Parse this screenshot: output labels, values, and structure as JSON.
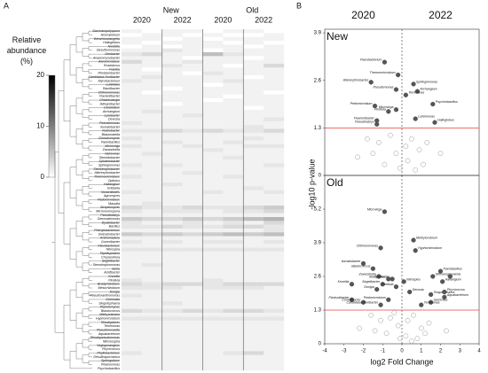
{
  "panels": [
    "A",
    "B"
  ],
  "chart_data": [
    {
      "type": "heatmap",
      "groups": [
        "New",
        "Old"
      ],
      "columns": [
        "2020",
        "2022",
        "2020",
        "2022"
      ],
      "colorbar_label": "Relative abundance (%)",
      "clim": [
        0,
        20
      ],
      "cticks": [
        0,
        10,
        20
      ],
      "rows": [
        "Saccharopolyspora",
        "Aromatoleum",
        "Wenzhouxiangella",
        "Halioglobus",
        "Nordella",
        "Desulfuromonas",
        "Geobacter",
        "Anaeromyxobacter",
        "Aeromicrobium",
        "Roseiarcus",
        "Frankia",
        "Rhodanobacter",
        "Candidatus Koribacter",
        "Mycobacterium",
        "Luteitalea",
        "Ramlibacter",
        "Chthonomonas",
        "Flavisolibacter",
        "Ohtaekwangia",
        "Adhaeribacter",
        "Clostridium",
        "Archangium",
        "Lysobacter",
        "Devosia",
        "Pseudomonas",
        "Ilumatobacter",
        "Rubrobacter",
        "Blastocatella",
        "Chondromyces",
        "Paenibacillus",
        "Microvirga",
        "Zavarzinella",
        "Variovorax",
        "Steroidobacter",
        "Sphaerobacter",
        "Sphingomonas",
        "Stenotrophobacter",
        "Altererythrobacter",
        "Thermomicrobium",
        "Opitutus",
        "Haliangium",
        "Kribbella",
        "Nocardioides",
        "Agromyces",
        "Pedomicrobium",
        "Massilia",
        "Streptomyces",
        "Micromonospora",
        "Pseudolabrys",
        "Gemmatimonas",
        "Dyadobacter",
        "Bacillus",
        "Phenylobacterium",
        "Solirubrobacter",
        "Actinomadura",
        "Conexibacter",
        "Flavobacterium",
        "Nitrospira",
        "Tepidisphaera",
        "Chryseolinea",
        "Segetibacter",
        "Stenotrophomonas",
        "Iamia",
        "Acidibacter",
        "Knoellia",
        "Pirellula",
        "Bradyrhizobium",
        "Mesorhizobium",
        "Dongia",
        "Pseudoxanthomonas",
        "Gemmata",
        "Singulisphaera",
        "Planctomyces",
        "Blastococcus",
        "Methylotenera",
        "Hyphomicrobium",
        "Rhodoplanes",
        "Terrimonas",
        "Pseudonocardia",
        "Aquabacterium",
        "Rhodopseudomonas",
        "Nitrosospira",
        "Virgisporangium",
        "Phycicoccus",
        "Phyllobacterium",
        "Desulfosporosinus",
        "Sphingobium",
        "Polaromonas",
        "Psychrobacillus"
      ],
      "values": [
        [
          1,
          0,
          1,
          1,
          0,
          1,
          1,
          0
        ],
        [
          0,
          1,
          1,
          0,
          1,
          0,
          0,
          1
        ],
        [
          1,
          1,
          0,
          1,
          0,
          1,
          1,
          1
        ],
        [
          1,
          0,
          1,
          1,
          1,
          0,
          1,
          0
        ],
        [
          0,
          1,
          0,
          1,
          1,
          1,
          0,
          1
        ],
        [
          1,
          1,
          2,
          1,
          0,
          1,
          1,
          1
        ],
        [
          2,
          3,
          1,
          1,
          5,
          2,
          1,
          1
        ],
        [
          1,
          1,
          1,
          0,
          1,
          1,
          0,
          1
        ],
        [
          3,
          1,
          1,
          2,
          1,
          1,
          1,
          1
        ],
        [
          1,
          1,
          2,
          1,
          1,
          0,
          1,
          3
        ],
        [
          1,
          0,
          1,
          1,
          1,
          1,
          1,
          1
        ],
        [
          1,
          1,
          1,
          0,
          2,
          1,
          1,
          1
        ],
        [
          1,
          2,
          1,
          1,
          1,
          1,
          0,
          1
        ],
        [
          2,
          1,
          1,
          1,
          1,
          2,
          1,
          1
        ],
        [
          1,
          1,
          1,
          1,
          0,
          1,
          1,
          1
        ],
        [
          1,
          1,
          0,
          1,
          1,
          1,
          1,
          1
        ],
        [
          1,
          0,
          1,
          1,
          1,
          1,
          1,
          0
        ],
        [
          1,
          1,
          1,
          1,
          1,
          0,
          1,
          1
        ],
        [
          1,
          1,
          1,
          1,
          0,
          1,
          1,
          1
        ],
        [
          1,
          1,
          0,
          1,
          1,
          1,
          1,
          1
        ],
        [
          1,
          1,
          1,
          1,
          1,
          1,
          0,
          1
        ],
        [
          1,
          2,
          1,
          1,
          1,
          1,
          1,
          1
        ],
        [
          1,
          1,
          1,
          2,
          1,
          1,
          1,
          1
        ],
        [
          1,
          1,
          1,
          1,
          1,
          1,
          1,
          2
        ],
        [
          2,
          1,
          1,
          1,
          1,
          1,
          1,
          1
        ],
        [
          1,
          1,
          1,
          1,
          1,
          1,
          2,
          1
        ],
        [
          2,
          2,
          3,
          2,
          3,
          2,
          2,
          3
        ],
        [
          1,
          1,
          1,
          1,
          1,
          1,
          1,
          1
        ],
        [
          2,
          1,
          1,
          1,
          1,
          1,
          2,
          1
        ],
        [
          1,
          1,
          2,
          1,
          1,
          2,
          1,
          1
        ],
        [
          2,
          1,
          1,
          2,
          1,
          1,
          2,
          2
        ],
        [
          1,
          1,
          1,
          1,
          2,
          1,
          1,
          1
        ],
        [
          1,
          2,
          1,
          1,
          1,
          1,
          1,
          1
        ],
        [
          1,
          1,
          1,
          1,
          1,
          2,
          1,
          1
        ],
        [
          1,
          1,
          1,
          1,
          1,
          1,
          1,
          1
        ],
        [
          2,
          1,
          2,
          1,
          1,
          1,
          1,
          2
        ],
        [
          1,
          1,
          1,
          1,
          1,
          1,
          1,
          1
        ],
        [
          1,
          1,
          1,
          2,
          1,
          1,
          1,
          1
        ],
        [
          2,
          1,
          1,
          1,
          1,
          2,
          1,
          1
        ],
        [
          1,
          1,
          1,
          1,
          1,
          1,
          1,
          1
        ],
        [
          1,
          1,
          2,
          1,
          1,
          1,
          1,
          1
        ],
        [
          1,
          1,
          1,
          1,
          1,
          1,
          2,
          1
        ],
        [
          2,
          1,
          1,
          1,
          2,
          1,
          1,
          2
        ],
        [
          1,
          1,
          1,
          1,
          1,
          1,
          1,
          1
        ],
        [
          1,
          1,
          1,
          1,
          1,
          1,
          1,
          1
        ],
        [
          1,
          2,
          1,
          1,
          1,
          1,
          1,
          1
        ],
        [
          3,
          2,
          2,
          3,
          2,
          2,
          3,
          4
        ],
        [
          2,
          1,
          2,
          2,
          1,
          2,
          2,
          3
        ],
        [
          1,
          1,
          1,
          1,
          1,
          1,
          1,
          1
        ],
        [
          4,
          3,
          3,
          4,
          3,
          4,
          5,
          6
        ],
        [
          2,
          1,
          1,
          2,
          1,
          2,
          1,
          3
        ],
        [
          2,
          2,
          3,
          2,
          2,
          3,
          3,
          2
        ],
        [
          1,
          1,
          1,
          1,
          1,
          1,
          1,
          2
        ],
        [
          4,
          3,
          4,
          3,
          4,
          5,
          4,
          5
        ],
        [
          1,
          1,
          1,
          1,
          1,
          1,
          1,
          1
        ],
        [
          2,
          1,
          2,
          1,
          2,
          2,
          1,
          2
        ],
        [
          1,
          1,
          1,
          1,
          1,
          1,
          1,
          1
        ],
        [
          2,
          2,
          2,
          2,
          2,
          2,
          2,
          2
        ],
        [
          1,
          1,
          1,
          1,
          1,
          1,
          1,
          1
        ],
        [
          1,
          1,
          1,
          1,
          1,
          1,
          1,
          1
        ],
        [
          1,
          1,
          1,
          1,
          1,
          1,
          1,
          1
        ],
        [
          1,
          2,
          1,
          1,
          1,
          1,
          1,
          1
        ],
        [
          1,
          1,
          1,
          1,
          1,
          1,
          1,
          1
        ],
        [
          1,
          1,
          1,
          1,
          1,
          1,
          1,
          1
        ],
        [
          1,
          1,
          1,
          1,
          1,
          1,
          1,
          1
        ],
        [
          2,
          1,
          1,
          1,
          2,
          1,
          1,
          1
        ],
        [
          3,
          2,
          3,
          3,
          2,
          3,
          3,
          3
        ],
        [
          2,
          2,
          2,
          1,
          2,
          2,
          2,
          1
        ],
        [
          1,
          1,
          1,
          1,
          1,
          1,
          1,
          1
        ],
        [
          2,
          1,
          1,
          1,
          1,
          1,
          1,
          1
        ],
        [
          1,
          1,
          1,
          1,
          1,
          1,
          1,
          1
        ],
        [
          1,
          1,
          2,
          1,
          1,
          1,
          1,
          1
        ],
        [
          1,
          1,
          1,
          1,
          1,
          1,
          1,
          1
        ],
        [
          3,
          2,
          2,
          3,
          2,
          3,
          3,
          2
        ],
        [
          1,
          1,
          1,
          1,
          1,
          1,
          1,
          1
        ],
        [
          2,
          2,
          2,
          2,
          2,
          2,
          2,
          2
        ],
        [
          1,
          1,
          1,
          1,
          1,
          1,
          1,
          1
        ],
        [
          1,
          1,
          1,
          1,
          1,
          1,
          1,
          1
        ],
        [
          1,
          1,
          1,
          1,
          1,
          1,
          1,
          1
        ],
        [
          1,
          1,
          1,
          1,
          1,
          1,
          1,
          1
        ],
        [
          1,
          1,
          1,
          1,
          1,
          1,
          1,
          1
        ],
        [
          1,
          1,
          1,
          1,
          1,
          1,
          1,
          1
        ],
        [
          1,
          1,
          1,
          1,
          1,
          1,
          1,
          1
        ],
        [
          1,
          1,
          1,
          1,
          1,
          1,
          1,
          1
        ],
        [
          2,
          1,
          1,
          1,
          1,
          2,
          3,
          1
        ],
        [
          1,
          1,
          1,
          1,
          1,
          1,
          1,
          1
        ],
        [
          1,
          1,
          1,
          1,
          1,
          1,
          1,
          1
        ],
        [
          1,
          1,
          1,
          1,
          1,
          1,
          1,
          1
        ],
        [
          1,
          1,
          1,
          1,
          1,
          1,
          1,
          1
        ]
      ]
    },
    {
      "type": "scatter",
      "title": "New",
      "column_headers": [
        "2020",
        "2022"
      ],
      "ylabel": "-log10 p-value",
      "xlim": [
        -4,
        4
      ],
      "ylim": [
        0,
        4
      ],
      "yticks": [
        0,
        1.3,
        2.6,
        3.9
      ],
      "threshold": 1.3,
      "threshold_color": "#e8413c",
      "series": [
        {
          "color": "#555555",
          "labels": [
            "Flavobacterium",
            "Thermomicrobium",
            "Altererythrobacter",
            "Sphingomonas",
            "Pseudomonas",
            "Archangium",
            "Terrimonas",
            "Psychrobacillus",
            "Pedomicrobium",
            "Pirellula",
            "Microvirga",
            "Luteimonas",
            "Flavisolibacter",
            "Pseudolabrys",
            "Halioglobus"
          ],
          "x": [
            -0.9,
            -0.2,
            -1.6,
            0.6,
            -0.3,
            0.8,
            0.2,
            1.6,
            -1.4,
            -0.7,
            -0.3,
            0.7,
            -1.3,
            -1.3,
            1.7
          ],
          "values": [
            3.1,
            2.75,
            2.55,
            2.5,
            2.35,
            2.3,
            2.2,
            1.95,
            1.9,
            1.75,
            1.8,
            1.55,
            1.5,
            1.4,
            1.45
          ]
        },
        {
          "color": "none",
          "x": [
            -1.8,
            -1.2,
            -0.6,
            -0.3,
            0.2,
            0.5,
            0.9,
            1.3,
            -2.3,
            2.0,
            -0.9,
            0.3,
            -0.1,
            1.1,
            -1.5,
            0.7
          ],
          "values": [
            1.0,
            0.9,
            1.1,
            0.6,
            0.8,
            1.0,
            0.7,
            0.9,
            0.5,
            0.6,
            0.3,
            0.4,
            0.2,
            0.3,
            0.6,
            0.15
          ]
        }
      ]
    },
    {
      "type": "scatter",
      "title": "Old",
      "xlabel": "log2 Fold Change",
      "xlim": [
        -4,
        4
      ],
      "xticks": [
        -4,
        -3,
        -2,
        -1,
        0,
        1,
        2,
        3,
        4
      ],
      "ylim": [
        0,
        6.5
      ],
      "yticks": [
        0,
        1.3,
        2.6,
        3.9,
        5.2
      ],
      "threshold": 1.3,
      "threshold_color": "#e8413c",
      "series": [
        {
          "color": "#555555",
          "labels": [
            "Microvirga",
            "Methylorubrum",
            "Hyphomicrobium",
            "Chthonomonas",
            "Ilumatobacter",
            "Blastococcus",
            "Paenibacillus",
            "Nitrosospira",
            "Iamia",
            "Haliangium",
            "Steroidobacter",
            "Segetibacter",
            "Dongia",
            "Zavarzinella",
            "Opitutus",
            "Nitrospira",
            "Pirellula",
            "Devosia",
            "Knoellia",
            "Flavisolibacter",
            "Pedomicrobium",
            "Conexibacter",
            "Candidatus Koribacter",
            "Singulisphaera",
            "Gemmata",
            "Terrimonas",
            "Phycicoccus",
            "Aquabacterium"
          ],
          "x": [
            -0.9,
            0.6,
            0.7,
            -1.1,
            -2.0,
            -1.5,
            2.0,
            1.6,
            2.5,
            2.1,
            -0.5,
            -1.0,
            -1.3,
            -1.2,
            -0.7,
            0.1,
            -0.3,
            0.4,
            -2.6,
            -2.6,
            -0.7,
            -2.0,
            -1.1,
            1.5,
            1.5,
            1.0,
            2.2,
            2.2
          ],
          "values": [
            5.1,
            4.0,
            3.6,
            3.7,
            3.1,
            2.9,
            2.8,
            2.6,
            2.6,
            2.4,
            2.5,
            2.3,
            2.1,
            2.6,
            2.5,
            2.4,
            2.2,
            2.0,
            2.3,
            1.7,
            1.7,
            1.6,
            1.5,
            1.9,
            1.6,
            1.5,
            2.0,
            1.8
          ]
        },
        {
          "color": "none",
          "x": [
            -1.6,
            -1.1,
            -0.6,
            -0.2,
            0.3,
            0.6,
            1.0,
            1.4,
            -2.2,
            2.3,
            -0.8,
            0.2,
            -0.1,
            1.2,
            -1.4,
            0.8,
            -0.4,
            0.5
          ],
          "values": [
            1.1,
            0.9,
            1.0,
            0.7,
            0.9,
            1.1,
            0.6,
            0.8,
            0.6,
            0.5,
            0.4,
            0.3,
            0.2,
            0.4,
            0.5,
            0.2,
            1.2,
            0.1
          ]
        }
      ]
    }
  ]
}
